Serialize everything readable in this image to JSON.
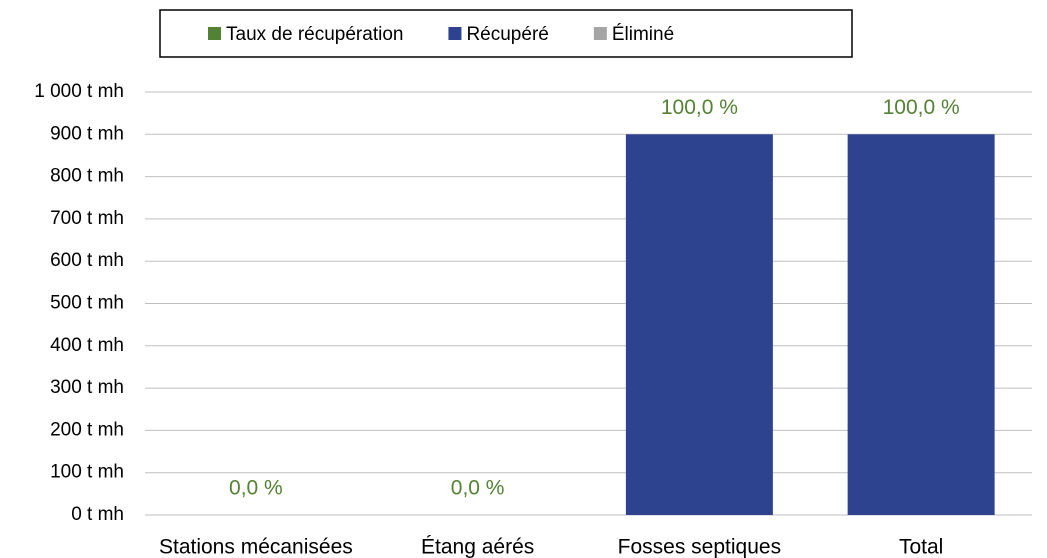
{
  "chart_data": {
    "type": "bar",
    "stacked": true,
    "categories": [
      "Stations mécanisées",
      "Étang aérés",
      "Fosses septiques",
      "Total"
    ],
    "series": [
      {
        "name": "Taux de récupération",
        "color": "#548235",
        "values": [
          0,
          0,
          100,
          100
        ],
        "value_labels": [
          "0,0 %",
          "0,0 %",
          "100,0 %",
          "100,0 %"
        ]
      },
      {
        "name": "Récupéré",
        "color": "#2e438f",
        "values": [
          0,
          0,
          900,
          900
        ]
      },
      {
        "name": "Éliminé",
        "color": "#a5a5a5",
        "values": [
          0,
          0,
          0,
          0
        ]
      }
    ],
    "ylim": [
      0,
      1000
    ],
    "yticks": [
      {
        "value": 0,
        "label": "0 t mh"
      },
      {
        "value": 100,
        "label": "100 t mh"
      },
      {
        "value": 200,
        "label": "200 t mh"
      },
      {
        "value": 300,
        "label": "300 t mh"
      },
      {
        "value": 400,
        "label": "400 t mh"
      },
      {
        "value": 500,
        "label": "500 t mh"
      },
      {
        "value": 600,
        "label": "600 t mh"
      },
      {
        "value": 700,
        "label": "700 t mh"
      },
      {
        "value": 800,
        "label": "800 t mh"
      },
      {
        "value": 900,
        "label": "900 t mh"
      },
      {
        "value": 1000,
        "label": "1 000 t mh"
      }
    ],
    "grid": true,
    "legend": "top"
  }
}
